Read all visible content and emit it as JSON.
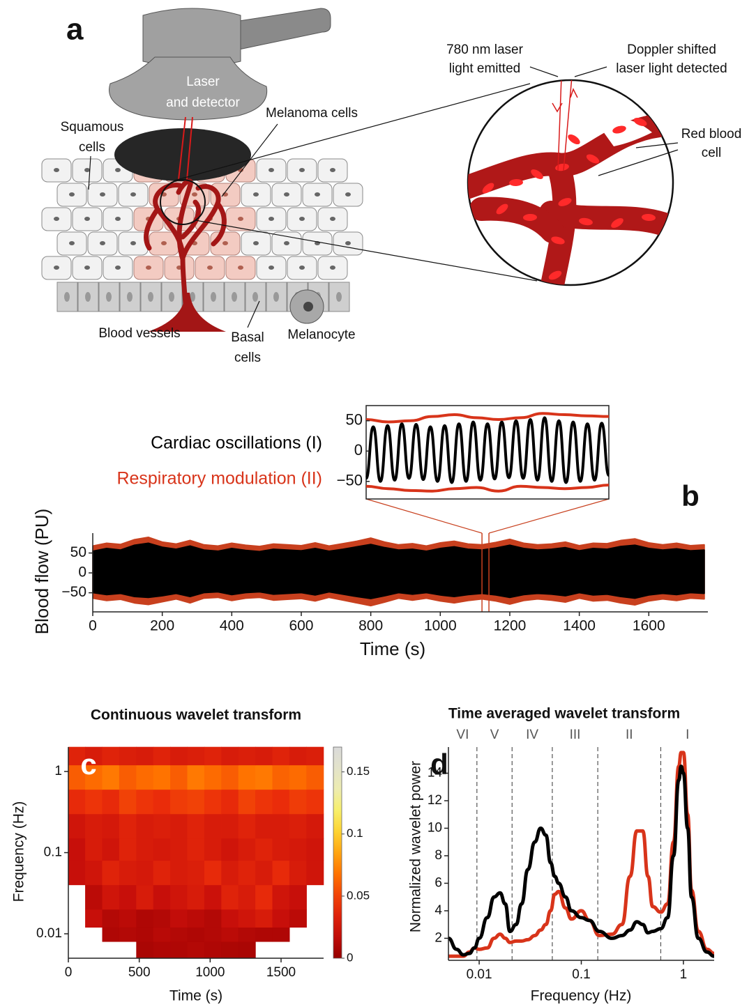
{
  "diagram": {
    "letter": "a",
    "labels": {
      "probe": [
        "Laser",
        "and detector"
      ],
      "melanoma": "Melanoma cells",
      "squamous": [
        "Squamous",
        "cells"
      ],
      "vessels": "Blood vessels",
      "basal": [
        "Basal",
        "cells"
      ],
      "melanocyte": "Melanocyte",
      "emitted": [
        "780 nm laser",
        "light emitted"
      ],
      "detected": [
        "Doppler shifted",
        "laser light detected"
      ],
      "rbc": [
        "Red blood",
        "cell"
      ]
    }
  },
  "chart_data": [
    {
      "type": "band",
      "panel": "b",
      "x_label": "Time (s)",
      "y_label": "Blood flow (PU)",
      "x": [
        0,
        40,
        80,
        120,
        160,
        200,
        240,
        280,
        320,
        360,
        400,
        440,
        480,
        520,
        560,
        600,
        640,
        680,
        720,
        760,
        800,
        840,
        880,
        920,
        960,
        1000,
        1040,
        1080,
        1120,
        1160,
        1200,
        1240,
        1280,
        1320,
        1360,
        1400,
        1440,
        1480,
        1520,
        1560,
        1600,
        1640,
        1680,
        1720,
        1760
      ],
      "series": [
        {
          "color": "#c8401e",
          "high": [
            68,
            75,
            72,
            84,
            90,
            78,
            73,
            82,
            71,
            68,
            75,
            70,
            67,
            73,
            71,
            69,
            76,
            68,
            74,
            80,
            88,
            78,
            71,
            74,
            68,
            76,
            80,
            73,
            71,
            77,
            85,
            75,
            71,
            73,
            78,
            69,
            75,
            74,
            82,
            86,
            76,
            71,
            75,
            69,
            71
          ],
          "low": [
            -64,
            -70,
            -67,
            -76,
            -80,
            -73,
            -66,
            -76,
            -64,
            -62,
            -70,
            -64,
            -62,
            -69,
            -67,
            -65,
            -71,
            -62,
            -69,
            -76,
            -83,
            -74,
            -64,
            -69,
            -64,
            -71,
            -76,
            -70,
            -66,
            -71,
            -79,
            -70,
            -66,
            -69,
            -74,
            -64,
            -71,
            -69,
            -76,
            -81,
            -71,
            -66,
            -70,
            -64,
            -66
          ]
        },
        {
          "color": "#000000",
          "high": [
            55,
            62,
            58,
            70,
            75,
            65,
            60,
            68,
            58,
            55,
            62,
            57,
            54,
            60,
            58,
            56,
            62,
            55,
            60,
            66,
            72,
            64,
            58,
            60,
            55,
            62,
            66,
            60,
            58,
            63,
            70,
            62,
            58,
            60,
            64,
            56,
            62,
            60,
            67,
            70,
            62,
            58,
            61,
            56,
            58
          ],
          "low": [
            -50,
            -55,
            -52,
            -60,
            -62,
            -58,
            -52,
            -60,
            -50,
            -48,
            -55,
            -50,
            -48,
            -54,
            -52,
            -50,
            -56,
            -48,
            -54,
            -60,
            -65,
            -58,
            -50,
            -54,
            -50,
            -56,
            -60,
            -55,
            -52,
            -56,
            -62,
            -55,
            -52,
            -54,
            -58,
            -50,
            -56,
            -54,
            -60,
            -64,
            -56,
            -52,
            -55,
            -50,
            -52
          ]
        }
      ],
      "highlight": [
        1120,
        1140
      ],
      "highlight_color": "#c8401e",
      "xlim": [
        0,
        1770
      ],
      "xticks": [
        0,
        200,
        400,
        600,
        800,
        1000,
        1200,
        1400,
        1600
      ],
      "ylim": [
        -98,
        100
      ],
      "yticks": [
        50,
        0,
        {
          "value": -50,
          "label": "−50"
        }
      ]
    },
    {
      "type": "line",
      "ylim": [
        -79,
        75
      ],
      "yticks": [
        50,
        0,
        {
          "value": -50,
          "label": "−50"
        }
      ],
      "series": [
        {
          "name": "Cardiac oscillations (I)",
          "color": "#000000",
          "values": [
            -45,
            40,
            -50,
            42,
            -48,
            45,
            -45,
            44,
            -47,
            40,
            -50,
            42,
            -52,
            45,
            -50,
            48,
            -48,
            45,
            -46,
            48,
            -44,
            50,
            -45,
            52,
            -48,
            55,
            -50,
            50,
            -52,
            48,
            -50,
            45,
            -48,
            46,
            -40
          ]
        },
        {
          "name": "Respiratory modulation (II)",
          "color": "#d8341a",
          "values": [
            52,
            48,
            50,
            57,
            60,
            55,
            52,
            55,
            62,
            60,
            58,
            57
          ]
        },
        {
          "color": "#d8341a",
          "values": [
            -58,
            -62,
            -65,
            -66,
            -62,
            -60,
            -66,
            -58,
            -60,
            -62,
            -60,
            -56
          ]
        }
      ]
    },
    {
      "type": "heatmap",
      "panel": "c",
      "title": "Continuous wavelet transform",
      "x_label": "Time (s)",
      "y_label": "Frequency (Hz)",
      "xbins": [
        0,
        120,
        240,
        360,
        480,
        600,
        720,
        840,
        960,
        1080,
        1200,
        1320,
        1440,
        1560,
        1680,
        1800
      ],
      "ybins": [
        0.005,
        0.008,
        0.012,
        0.02,
        0.04,
        0.08,
        0.15,
        0.3,
        0.6,
        1.2,
        2
      ],
      "z": [
        [
          null,
          null,
          null,
          null,
          0.008,
          0.01,
          0.01,
          0.012,
          0.01,
          0.009,
          0.008,
          null,
          null,
          null,
          null
        ],
        [
          null,
          null,
          0.01,
          0.012,
          0.01,
          0.014,
          0.012,
          0.01,
          0.012,
          0.015,
          0.012,
          0.01,
          0.01,
          null,
          null
        ],
        [
          null,
          0.02,
          0.012,
          0.015,
          0.01,
          0.012,
          0.018,
          0.015,
          0.012,
          0.02,
          0.025,
          0.03,
          0.02,
          0.015,
          null
        ],
        [
          null,
          0.015,
          0.025,
          0.02,
          0.03,
          0.02,
          0.025,
          0.03,
          0.022,
          0.035,
          0.03,
          0.04,
          0.025,
          0.02,
          null
        ],
        [
          0.02,
          0.025,
          0.035,
          0.03,
          0.028,
          0.035,
          0.03,
          0.032,
          0.04,
          0.03,
          0.035,
          0.03,
          0.04,
          0.03,
          0.025
        ],
        [
          0.02,
          0.03,
          0.025,
          0.035,
          0.03,
          0.028,
          0.03,
          0.035,
          0.03,
          0.025,
          0.03,
          0.035,
          0.03,
          0.028,
          0.025
        ],
        [
          0.025,
          0.03,
          0.028,
          0.035,
          0.03,
          0.032,
          0.03,
          0.035,
          0.03,
          0.03,
          0.035,
          0.03,
          0.03,
          0.032,
          0.028
        ],
        [
          0.04,
          0.045,
          0.04,
          0.05,
          0.045,
          0.042,
          0.048,
          0.05,
          0.045,
          0.04,
          0.05,
          0.045,
          0.042,
          0.048,
          0.045
        ],
        [
          0.06,
          0.065,
          0.07,
          0.06,
          0.065,
          0.068,
          0.06,
          0.07,
          0.065,
          0.06,
          0.068,
          0.07,
          0.062,
          0.065,
          0.06
        ],
        [
          0.035,
          0.03,
          0.035,
          0.032,
          0.03,
          0.035,
          0.03,
          0.032,
          0.035,
          0.03,
          0.032,
          0.03,
          0.035,
          0.03,
          0.032
        ]
      ],
      "xlim": [
        0,
        1800
      ],
      "xticks": [
        0,
        500,
        1000,
        1500
      ],
      "ylim": [
        0.005,
        2
      ],
      "yticks": [
        0.01,
        0.1,
        1
      ],
      "log_y": true,
      "colorbar": {
        "lim": [
          0,
          0.17
        ],
        "ticks": [
          0,
          0.05,
          0.1,
          0.15
        ]
      }
    },
    {
      "type": "line",
      "panel": "d",
      "title": "Time averaged wavelet transform",
      "x_label": "Frequency (Hz)",
      "y_label": "Normalized wavelet power",
      "log_x": true,
      "x": [
        0.005,
        0.006,
        0.007,
        0.008,
        0.009,
        0.01,
        0.012,
        0.014,
        0.016,
        0.018,
        0.02,
        0.023,
        0.026,
        0.03,
        0.035,
        0.04,
        0.045,
        0.05,
        0.055,
        0.06,
        0.07,
        0.08,
        0.1,
        0.12,
        0.15,
        0.2,
        0.25,
        0.3,
        0.35,
        0.4,
        0.45,
        0.5,
        0.6,
        0.7,
        0.8,
        0.9,
        0.95,
        1,
        1.1,
        1.2,
        1.4,
        1.7,
        2
      ],
      "series": [
        {
          "color": "#d8341a",
          "values": [
            0.7,
            0.7,
            0.7,
            1.0,
            1.3,
            1.2,
            1.3,
            2.0,
            2.3,
            2.0,
            1.7,
            1.8,
            1.8,
            1.9,
            2.2,
            2.6,
            3.0,
            4.0,
            5.2,
            5.4,
            4.2,
            3.4,
            4.0,
            3.3,
            2.2,
            2.3,
            3.0,
            6.5,
            9.8,
            9.8,
            6.5,
            4.3,
            3.9,
            4.5,
            9.0,
            14.5,
            15.5,
            15.5,
            11.0,
            5.5,
            2.5,
            1.2,
            0.9
          ]
        },
        {
          "color": "#000000",
          "values": [
            2.0,
            1.2,
            0.8,
            0.9,
            1.3,
            2.0,
            3.5,
            5.0,
            5.3,
            4.5,
            2.5,
            3.0,
            4.5,
            7.0,
            9.0,
            10.0,
            9.5,
            7.5,
            6.5,
            6.0,
            5.0,
            4.0,
            3.5,
            3.3,
            2.5,
            2.0,
            2.2,
            2.6,
            3.2,
            3.0,
            2.4,
            2.5,
            2.7,
            3.5,
            8.0,
            13.5,
            14.5,
            14.0,
            10.0,
            5.0,
            2.0,
            1.0,
            0.7
          ]
        }
      ],
      "intervals": {
        "bounds": [
          0.0095,
          0.021,
          0.052,
          0.145,
          0.6
        ],
        "labels": [
          "VI",
          "V",
          "IV",
          "III",
          "II",
          "I"
        ]
      },
      "xlim": [
        0.005,
        2
      ],
      "xticks": [
        0.01,
        0.1,
        1
      ],
      "ylim": [
        0.4,
        15.9
      ],
      "yticks": [
        2,
        4,
        6,
        8,
        10,
        12,
        14
      ]
    }
  ]
}
